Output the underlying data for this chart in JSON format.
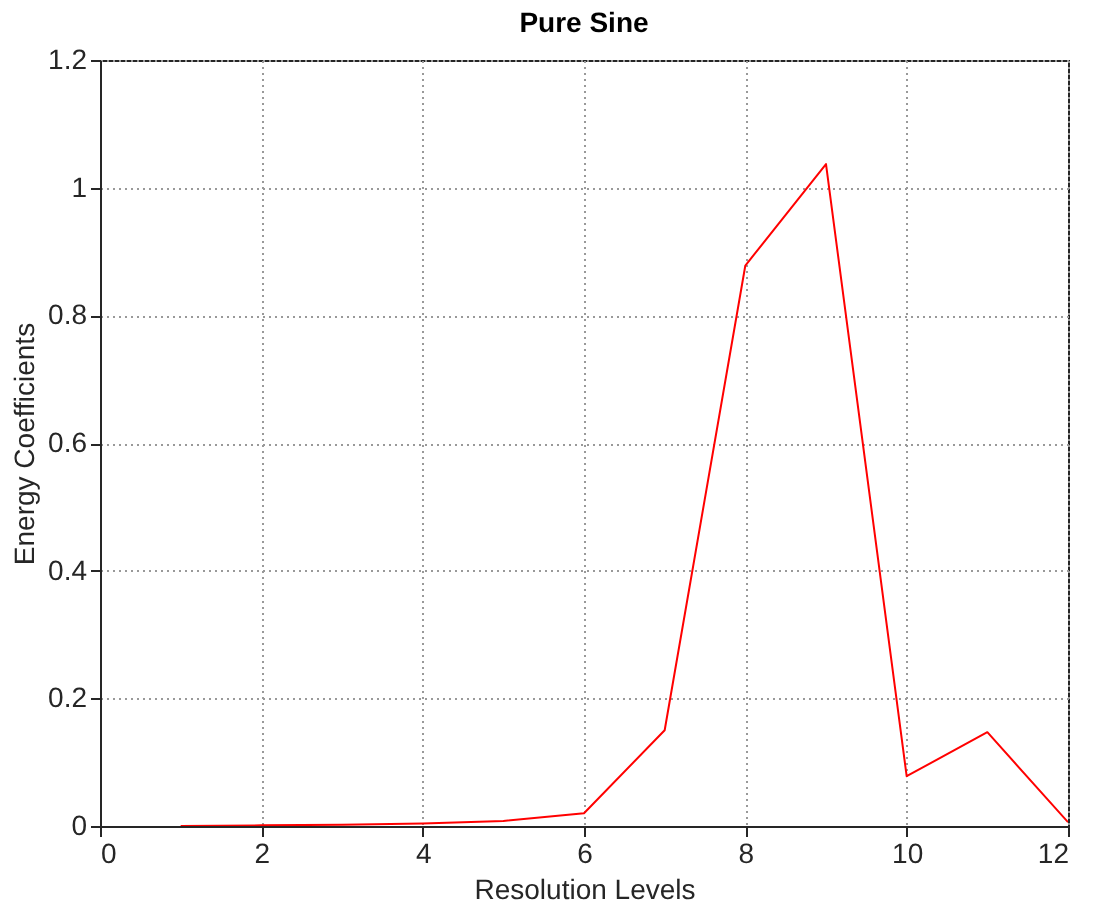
{
  "chart_data": {
    "type": "line",
    "title": "Pure Sine",
    "xlabel": "Resolution Levels",
    "ylabel": "Energy Coefficients",
    "x": [
      1,
      2,
      3,
      4,
      5,
      6,
      7,
      8,
      9,
      10,
      11,
      12
    ],
    "series": [
      {
        "color": "#ff0000",
        "values": [
          0.0,
          0.001,
          0.002,
          0.004,
          0.008,
          0.02,
          0.15,
          0.878,
          1.037,
          0.078,
          0.147,
          0.006
        ]
      }
    ],
    "xlim": [
      0,
      12
    ],
    "xticks": [
      0,
      2,
      4,
      6,
      8,
      10,
      12
    ],
    "ylim": [
      0,
      1.2
    ],
    "yticks": [
      0,
      0.2,
      0.4,
      0.6,
      0.8,
      1,
      1.2
    ],
    "grid": true,
    "line_style": "solid",
    "marker": "none"
  }
}
